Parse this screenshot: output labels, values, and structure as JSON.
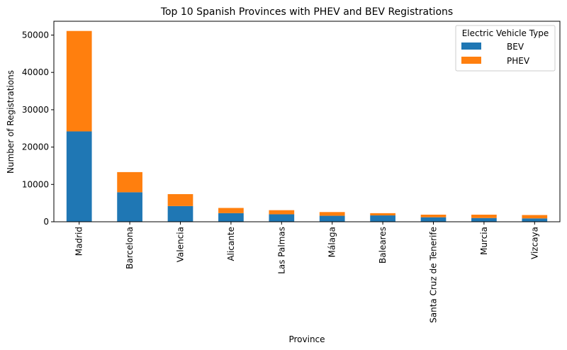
{
  "chart_data": {
    "type": "bar",
    "stacked": true,
    "title": "Top 10 Spanish Provinces with PHEV and BEV Registrations",
    "xlabel": "Province",
    "ylabel": "Number of Registrations",
    "ylim": [
      0,
      53700
    ],
    "yticks": [
      0,
      10000,
      20000,
      30000,
      40000,
      50000
    ],
    "ytick_labels": [
      "0",
      "10000",
      "20000",
      "30000",
      "40000",
      "50000"
    ],
    "grid": false,
    "legend": {
      "title": "Electric Vehicle Type",
      "placement": "top-right"
    },
    "categories": [
      "Madrid",
      "Barcelona",
      "Valencia",
      "Alicante",
      "Las Palmas",
      "Málaga",
      "Baleares",
      "Santa Cruz de Tenerife",
      "Murcia",
      "Vizcaya"
    ],
    "series": [
      {
        "name": "BEV",
        "color": "#1f77b4",
        "values": [
          24200,
          7900,
          4200,
          2300,
          2000,
          1600,
          1700,
          1200,
          1000,
          900
        ]
      },
      {
        "name": "PHEV",
        "color": "#ff7f0e",
        "values": [
          26900,
          5400,
          3200,
          1400,
          1100,
          1000,
          600,
          700,
          900,
          900
        ]
      }
    ]
  }
}
